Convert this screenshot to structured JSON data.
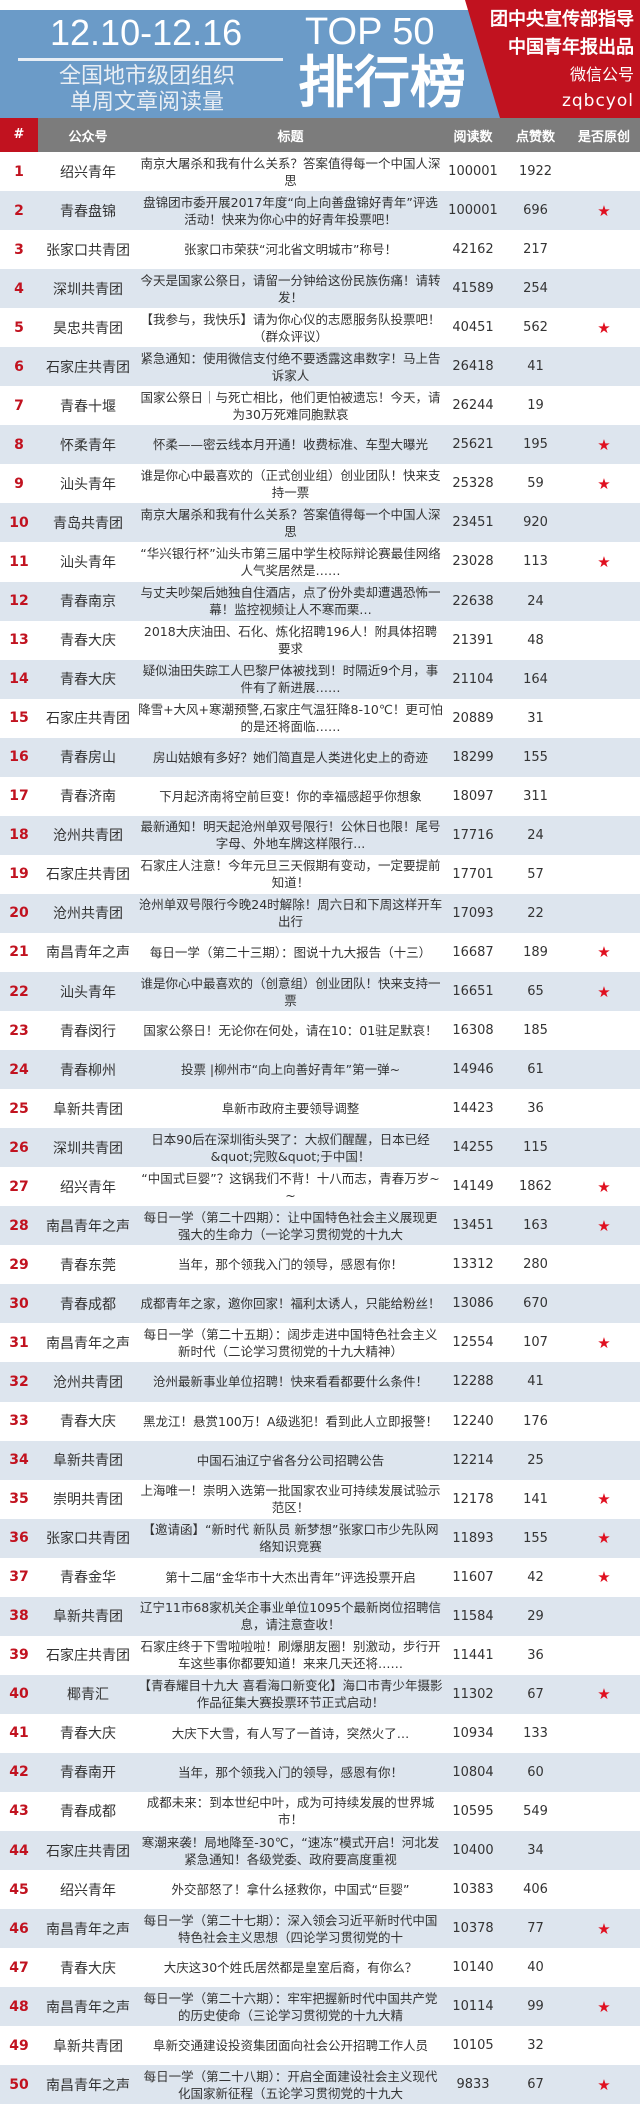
{
  "header": {
    "date_range": "12.10-12.16",
    "subtitle_line1": "全国地市级团组织",
    "subtitle_line2": "单周文章阅读量",
    "top": "TOP 50",
    "rank_title": "排行榜",
    "publisher_line1": "团中央宣传部指导",
    "publisher_line2": "中国青年报出品",
    "publisher_line3": "微信公号",
    "publisher_account": "zqbcyol"
  },
  "columns": {
    "rank": "#",
    "account": "公众号",
    "title": "标题",
    "reads": "阅读数",
    "likes": "点赞数",
    "original": "是否原创"
  },
  "star": "★",
  "rows": [
    {
      "rank": "1",
      "account": "绍兴青年",
      "title": "南京大屠杀和我有什么关系？答案值得每一个中国人深思",
      "reads": "100001",
      "likes": "1922",
      "original": ""
    },
    {
      "rank": "2",
      "account": "青春盘锦",
      "title": "盘锦团市委开展2017年度“向上向善盘锦好青年”评选活动！快来为你心中的好青年投票吧！",
      "reads": "100001",
      "likes": "696",
      "original": "★"
    },
    {
      "rank": "3",
      "account": "张家口共青团",
      "title": "张家口市荣获“河北省文明城市”称号！",
      "reads": "42162",
      "likes": "217",
      "original": ""
    },
    {
      "rank": "4",
      "account": "深圳共青团",
      "title": "今天是国家公祭日，请留一分钟给这份民族伤痛！请转发！",
      "reads": "41589",
      "likes": "254",
      "original": ""
    },
    {
      "rank": "5",
      "account": "昊忠共青团",
      "title": "【我参与，我快乐】请为你心仪的志愿服务队投票吧！（群众评议）",
      "reads": "40451",
      "likes": "562",
      "original": "★"
    },
    {
      "rank": "6",
      "account": "石家庄共青团",
      "title": "紧急通知：使用微信支付绝不要透露这串数字！马上告诉家人",
      "reads": "26418",
      "likes": "41",
      "original": ""
    },
    {
      "rank": "7",
      "account": "青春十堰",
      "title": "国家公祭日｜与死亡相比，他们更怕被遗忘！今天，请为30万死难同胞默哀",
      "reads": "26244",
      "likes": "19",
      "original": ""
    },
    {
      "rank": "8",
      "account": "怀柔青年",
      "title": "怀柔——密云线本月开通！收费标准、车型大曝光",
      "reads": "25621",
      "likes": "195",
      "original": "★"
    },
    {
      "rank": "9",
      "account": "汕头青年",
      "title": "谁是你心中最喜欢的（正式创业组）创业团队！快来支持一票",
      "reads": "25328",
      "likes": "59",
      "original": "★"
    },
    {
      "rank": "10",
      "account": "青岛共青团",
      "title": "南京大屠杀和我有什么关系？答案值得每一个中国人深思",
      "reads": "23451",
      "likes": "920",
      "original": ""
    },
    {
      "rank": "11",
      "account": "汕头青年",
      "title": "“华兴银行杯”汕头市第三届中学生校际辩论赛最佳网络人气奖居然是……",
      "reads": "23028",
      "likes": "113",
      "original": "★"
    },
    {
      "rank": "12",
      "account": "青春南京",
      "title": "与丈夫吵架后她独自住酒店，点了份外卖却遭遇恐怖一幕！监控视频让人不寒而栗…",
      "reads": "22638",
      "likes": "24",
      "original": ""
    },
    {
      "rank": "13",
      "account": "青春大庆",
      "title": "2018大庆油田、石化、炼化招聘196人！附具体招聘要求",
      "reads": "21391",
      "likes": "48",
      "original": ""
    },
    {
      "rank": "14",
      "account": "青春大庆",
      "title": "疑似油田失踪工人巴黎尸体被找到！时隔近9个月，事件有了新进展……",
      "reads": "21104",
      "likes": "164",
      "original": ""
    },
    {
      "rank": "15",
      "account": "石家庄共青团",
      "title": "降雪+大风+寒潮预警,石家庄气温狂降8-10℃！更可怕的是还将面临……",
      "reads": "20889",
      "likes": "31",
      "original": ""
    },
    {
      "rank": "16",
      "account": "青春房山",
      "title": "房山姑娘有多好？她们简直是人类进化史上的奇迹",
      "reads": "18299",
      "likes": "155",
      "original": ""
    },
    {
      "rank": "17",
      "account": "青春济南",
      "title": "下月起济南将空前巨变！你的幸福感超乎你想象",
      "reads": "18097",
      "likes": "311",
      "original": ""
    },
    {
      "rank": "18",
      "account": "沧州共青团",
      "title": "最新通知！明天起沧州单双号限行！公休日也限！尾号字母、外地车牌这样限行...",
      "reads": "17716",
      "likes": "24",
      "original": ""
    },
    {
      "rank": "19",
      "account": "石家庄共青团",
      "title": "石家庄人注意！今年元旦三天假期有变动，一定要提前知道！",
      "reads": "17701",
      "likes": "57",
      "original": ""
    },
    {
      "rank": "20",
      "account": "沧州共青团",
      "title": "沧州单双号限行今晚24时解除！周六日和下周这样开车出行",
      "reads": "17093",
      "likes": "22",
      "original": ""
    },
    {
      "rank": "21",
      "account": "南昌青年之声",
      "title": "每日一学（第二十三期）：图说十九大报告（十三）",
      "reads": "16687",
      "likes": "189",
      "original": "★"
    },
    {
      "rank": "22",
      "account": "汕头青年",
      "title": "谁是你心中最喜欢的（创意组）创业团队！快来支持一票",
      "reads": "16651",
      "likes": "65",
      "original": "★"
    },
    {
      "rank": "23",
      "account": "青春闵行",
      "title": "国家公祭日！无论你在何处，请在10：01驻足默哀！",
      "reads": "16308",
      "likes": "185",
      "original": ""
    },
    {
      "rank": "24",
      "account": "青春柳州",
      "title": "投票 |柳州市“向上向善好青年”第一弹~",
      "reads": "14946",
      "likes": "61",
      "original": ""
    },
    {
      "rank": "25",
      "account": "阜新共青团",
      "title": "阜新市政府主要领导调整",
      "reads": "14423",
      "likes": "36",
      "original": ""
    },
    {
      "rank": "26",
      "account": "深圳共青团",
      "title": "日本90后在深圳街头哭了：大叔们醒醒，日本已经&quot;完败&quot;于中国！",
      "reads": "14255",
      "likes": "115",
      "original": ""
    },
    {
      "rank": "27",
      "account": "绍兴青年",
      "title": "“中国式巨婴”？这锅我们不背！十八而志，青春万岁~ ~",
      "reads": "14149",
      "likes": "1862",
      "original": "★"
    },
    {
      "rank": "28",
      "account": "南昌青年之声",
      "title": "每日一学（第二十四期）：让中国特色社会主义展现更强大的生命力（一论学习贯彻党的十九大",
      "reads": "13451",
      "likes": "163",
      "original": "★"
    },
    {
      "rank": "29",
      "account": "青春东莞",
      "title": "当年，那个领我入门的领导，感恩有你！",
      "reads": "13312",
      "likes": "280",
      "original": ""
    },
    {
      "rank": "30",
      "account": "青春成都",
      "title": "成都青年之家，邀你回家！福利太诱人，只能给粉丝！",
      "reads": "13086",
      "likes": "670",
      "original": ""
    },
    {
      "rank": "31",
      "account": "南昌青年之声",
      "title": "每日一学（第二十五期）：阔步走进中国特色社会主义新时代（二论学习贯彻党的十九大精神）",
      "reads": "12554",
      "likes": "107",
      "original": "★"
    },
    {
      "rank": "32",
      "account": "沧州共青团",
      "title": "沧州最新事业单位招聘！快来看看都要什么条件！",
      "reads": "12288",
      "likes": "41",
      "original": ""
    },
    {
      "rank": "33",
      "account": "青春大庆",
      "title": "黑龙江！悬赏100万！A级逃犯！看到此人立即报警！",
      "reads": "12240",
      "likes": "176",
      "original": ""
    },
    {
      "rank": "34",
      "account": "阜新共青团",
      "title": "中国石油辽宁省各分公司招聘公告",
      "reads": "12214",
      "likes": "25",
      "original": ""
    },
    {
      "rank": "35",
      "account": "崇明共青团",
      "title": "上海唯一！崇明入选第一批国家农业可持续发展试验示范区！",
      "reads": "12178",
      "likes": "141",
      "original": "★"
    },
    {
      "rank": "36",
      "account": "张家口共青团",
      "title": "【邀请函】“新时代 新队员 新梦想”张家口市少先队网络知识竞赛",
      "reads": "11893",
      "likes": "155",
      "original": "★"
    },
    {
      "rank": "37",
      "account": "青春金华",
      "title": "第十二届“金华市十大杰出青年”评选投票开启",
      "reads": "11607",
      "likes": "42",
      "original": "★"
    },
    {
      "rank": "38",
      "account": "阜新共青团",
      "title": "辽宁11市68家机关企事业单位1095个最新岗位招聘信息，请注意查收！",
      "reads": "11584",
      "likes": "29",
      "original": ""
    },
    {
      "rank": "39",
      "account": "石家庄共青团",
      "title": "石家庄终于下雪啦啦啦！刷爆朋友圈！别激动，步行开车这些事你都要知道！来来几天还将……",
      "reads": "11441",
      "likes": "36",
      "original": ""
    },
    {
      "rank": "40",
      "account": "椰青汇",
      "title": "【青春耀目十九大 喜看海口新变化】海口市青少年摄影作品征集大赛投票环节正式启动！",
      "reads": "11302",
      "likes": "67",
      "original": "★"
    },
    {
      "rank": "41",
      "account": "青春大庆",
      "title": "大庆下大雪，有人写了一首诗，突然火了…",
      "reads": "10934",
      "likes": "133",
      "original": ""
    },
    {
      "rank": "42",
      "account": "青春南开",
      "title": "当年，那个领我入门的领导，感恩有你！",
      "reads": "10804",
      "likes": "60",
      "original": ""
    },
    {
      "rank": "43",
      "account": "青春成都",
      "title": "成都未来：到本世纪中叶，成为可持续发展的世界城市！",
      "reads": "10595",
      "likes": "549",
      "original": ""
    },
    {
      "rank": "44",
      "account": "石家庄共青团",
      "title": "寒潮来袭！局地降至-30℃，“速冻”模式开启！河北发紧急通知！各级党委、政府要高度重视",
      "reads": "10400",
      "likes": "34",
      "original": ""
    },
    {
      "rank": "45",
      "account": "绍兴青年",
      "title": "外交部怒了！拿什么拯救你，中国式“巨婴”",
      "reads": "10383",
      "likes": "406",
      "original": ""
    },
    {
      "rank": "46",
      "account": "南昌青年之声",
      "title": "每日一学（第二十七期）：深入领会习近平新时代中国特色社会主义思想（四论学习贯彻党的十",
      "reads": "10378",
      "likes": "77",
      "original": "★"
    },
    {
      "rank": "47",
      "account": "青春大庆",
      "title": "大庆这30个姓氏居然都是皇室后裔，有你么？",
      "reads": "10140",
      "likes": "40",
      "original": ""
    },
    {
      "rank": "48",
      "account": "南昌青年之声",
      "title": "每日一学（第二十六期）：牢牢把握新时代中国共产党的历史使命（三论学习贯彻党的十九大精",
      "reads": "10114",
      "likes": "99",
      "original": "★"
    },
    {
      "rank": "49",
      "account": "阜新共青团",
      "title": "阜新交通建设投资集团面向社会公开招聘工作人员",
      "reads": "10105",
      "likes": "32",
      "original": ""
    },
    {
      "rank": "50",
      "account": "南昌青年之声",
      "title": "每日一学（第二十八期）：开启全面建设社会主义现代化国家新征程（五论学习贯彻党的十九大",
      "reads": "9833",
      "likes": "67",
      "original": "★"
    }
  ]
}
